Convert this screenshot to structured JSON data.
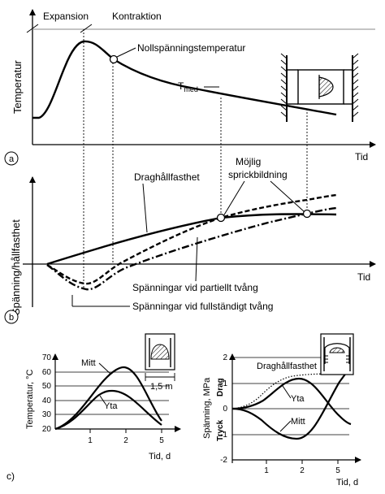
{
  "panel_a": {
    "marker": "a",
    "y_axis_label": "Temperatur",
    "x_axis_label": "Tid",
    "phase_expansion": "Expansion",
    "phase_contraction": "Kontraktion",
    "zero_stress_label": "Nollspänningstemperatur",
    "t_med_main": "T",
    "t_med_sub": "med"
  },
  "panel_b": {
    "marker": "b",
    "y_axis_label": "Spänning/hållfasthet",
    "x_axis_label": "Tid",
    "tensile_strength_label": "Draghållfasthet",
    "crack_label_line1": "Möjlig",
    "crack_label_line2": "sprickbildning",
    "partial_restraint_label": "Spänningar vid partiellt tvång",
    "full_restraint_label": "Spänningar vid fullständigt tvång"
  },
  "panel_c": {
    "marker": "c)",
    "temp_chart": {
      "y_axis_label": "Temperatur, °C",
      "x_axis_label": "Tid, d",
      "y_ticks": [
        "20",
        "30",
        "40",
        "50",
        "60",
        "70"
      ],
      "x_ticks": [
        "1",
        "2",
        "5"
      ],
      "series_mitt": "Mitt",
      "series_yta": "Yta",
      "dimension_label": "1,5 m"
    },
    "stress_chart": {
      "y_axis_label": "Spänning, MPa",
      "y_axis_drag": "Drag",
      "y_axis_tryck": "Tryck",
      "x_axis_label": "Tid, d",
      "y_ticks": [
        "2",
        "1",
        "0",
        "-1",
        "-2"
      ],
      "x_ticks": [
        "1",
        "2",
        "5"
      ],
      "series_strength": "Draghållfasthet",
      "series_yta": "Yta",
      "series_mitt": "Mitt"
    }
  }
}
